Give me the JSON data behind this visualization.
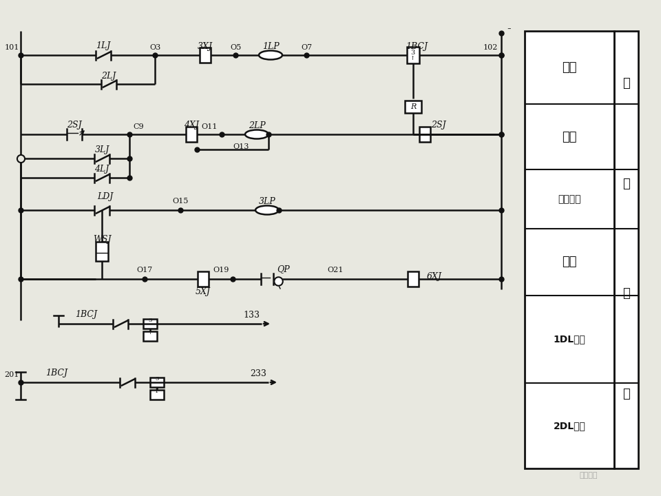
{
  "bg_color": "#e8e8e0",
  "line_color": "#111111",
  "fig_width": 9.6,
  "fig_height": 7.2,
  "panel_cells": [
    "速断",
    "过流",
    "零序过流",
    "瓦斯",
    "1DL跳闸",
    "2DL跳闸"
  ],
  "side_labels": [
    "保",
    "护",
    "回",
    "路"
  ],
  "watermark": "电工之家",
  "minus_sign": "-"
}
